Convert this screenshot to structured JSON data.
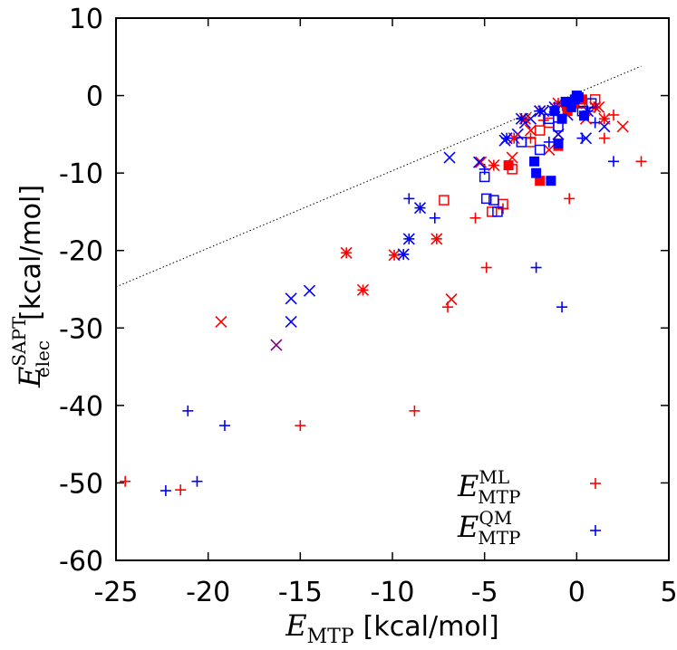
{
  "chart_data": {
    "type": "scatter",
    "title": "",
    "xlim": [
      -25,
      5
    ],
    "ylim": [
      -60,
      10
    ],
    "x_ticks": [
      -25,
      -20,
      -15,
      -10,
      -5,
      0,
      5
    ],
    "y_ticks": [
      -60,
      -50,
      -40,
      -30,
      -20,
      -10,
      0,
      10
    ],
    "x_tick_labels": [
      "-25",
      "-20",
      "-15",
      "-10",
      "-5",
      "0",
      "5"
    ],
    "y_tick_labels": [
      "-60",
      "-50",
      "-40",
      "-30",
      "-20",
      "-10",
      "0",
      "10"
    ],
    "xlabel": {
      "symbol": "E",
      "sub": "MTP",
      "unit": "[kcal/mol]"
    },
    "ylabel": {
      "symbol": "E",
      "sup": "SAPT",
      "sub": "elec",
      "unit": "[kcal/mol]"
    },
    "grid": false,
    "legend_position": "bottom-right",
    "reference_line": {
      "style": "dotted",
      "color": "#000000",
      "x": [
        -25,
        3.5
      ],
      "y": [
        -24.7,
        3.8
      ]
    },
    "colors": {
      "ML": "#ff0000",
      "QM": "#0000ff",
      "overlap": "#800080"
    },
    "legend": [
      {
        "symbol": "E",
        "sup": "ML",
        "sub": "MTP",
        "color": "#ff0000",
        "marker": "plus"
      },
      {
        "symbol": "E",
        "sup": "QM",
        "sub": "MTP",
        "color": "#0000ff",
        "marker": "plus"
      }
    ],
    "series": [
      {
        "name": "ML",
        "color": "#ff0000",
        "marker": "plus",
        "x": [
          -24.5,
          -21.5,
          -15.0,
          -8.8,
          -7.0,
          -4.9,
          -5.5,
          -4.0,
          -0.4,
          -2.5,
          3.5,
          1.5,
          2.0,
          -1.8
        ],
        "y": [
          -49.8,
          -50.9,
          -42.6,
          -40.7,
          -27.3,
          -22.2,
          -15.8,
          -14.6,
          -13.3,
          -5.5,
          -8.5,
          -5.5,
          -2.5,
          -3.2
        ]
      },
      {
        "name": "QM",
        "color": "#0000ff",
        "marker": "plus",
        "x": [
          -22.3,
          -20.6,
          -21.1,
          -19.1,
          -9.1,
          -7.7,
          -5.0,
          -2.2,
          -0.8,
          2.0,
          1.0,
          -3.0,
          -1.5,
          -0.5,
          0.3
        ],
        "y": [
          -51.0,
          -49.8,
          -40.7,
          -42.6,
          -13.3,
          -15.8,
          -9.5,
          -22.2,
          -27.3,
          -8.5,
          -3.5,
          -3.0,
          -6.0,
          -1.5,
          -5.5
        ]
      },
      {
        "name": "ML",
        "color": "#ff0000",
        "marker": "cross",
        "x": [
          -19.3,
          -6.8,
          -5.2,
          -2.5,
          -1.0,
          0.5,
          1.2,
          2.5,
          -3.5,
          -1.5,
          0.0
        ],
        "y": [
          -29.2,
          -26.3,
          -8.6,
          -4.5,
          -5.0,
          -3.0,
          -1.5,
          -4.0,
          -8.0,
          -7.0,
          -1.0
        ]
      },
      {
        "name": "QM",
        "color": "#0000ff",
        "marker": "cross",
        "x": [
          -15.5,
          -15.5,
          -14.5,
          -6.9,
          -5.3,
          -3.9,
          -3.2,
          -2.5,
          -1.8,
          -1.0,
          0.5,
          1.5,
          -2.8,
          -0.5
        ],
        "y": [
          -26.2,
          -29.2,
          -25.2,
          -8.0,
          -8.6,
          -5.8,
          -5.0,
          -3.0,
          -2.0,
          -5.0,
          -5.5,
          -4.0,
          -3.5,
          -2.5
        ]
      },
      {
        "name": "",
        "color": "#800080",
        "marker": "cross",
        "x": [
          -16.3
        ],
        "y": [
          -32.2
        ]
      },
      {
        "name": "ML",
        "color": "#ff0000",
        "marker": "star",
        "x": [
          -12.5,
          -11.6,
          -9.9,
          -7.6,
          -4.5,
          -3.4,
          -2.8,
          -2.0,
          -1.0,
          1.0,
          1.5
        ],
        "y": [
          -20.3,
          -25.1,
          -20.6,
          -18.5,
          -9.0,
          -5.5,
          -3.0,
          -2.0,
          -1.0,
          -1.5,
          -3.0
        ]
      },
      {
        "name": "QM",
        "color": "#0000ff",
        "marker": "star",
        "x": [
          -9.4,
          -9.1,
          -8.5,
          -3.8,
          -3.0,
          -2.0,
          -1.2,
          -0.5,
          0.6
        ],
        "y": [
          -20.5,
          -18.5,
          -14.5,
          -5.5,
          -3.0,
          -2.0,
          -1.5,
          -1.0,
          -2.0
        ]
      },
      {
        "name": "ML",
        "color": "#ff0000",
        "marker": "box",
        "x": [
          -7.2,
          -4.6,
          -4.0,
          -2.5,
          -1.5,
          -0.8,
          0.2,
          1.0,
          -3.5,
          -2.0
        ],
        "y": [
          -13.5,
          -15.0,
          -14.0,
          -6.0,
          -3.5,
          -2.0,
          -1.0,
          -0.5,
          -9.5,
          -4.5
        ]
      },
      {
        "name": "QM",
        "color": "#0000ff",
        "marker": "box",
        "x": [
          -5.0,
          -4.9,
          -4.3,
          -4.5,
          -2.0,
          -1.0,
          0.3,
          0.8,
          -3.0,
          -1.5
        ],
        "y": [
          -10.5,
          -13.3,
          -15.0,
          -13.5,
          -7.0,
          -4.0,
          -2.0,
          -1.0,
          -6.0,
          -3.0
        ]
      },
      {
        "name": "ML",
        "color": "#ff0000",
        "marker": "filled-box",
        "x": [
          -3.7,
          -2.0,
          -1.0,
          -0.2,
          0.3,
          -0.5
        ],
        "y": [
          -9.0,
          -11.0,
          -6.5,
          -1.0,
          -0.5,
          -2.0
        ]
      },
      {
        "name": "QM",
        "color": "#0000ff",
        "marker": "filled-box",
        "x": [
          -2.3,
          -2.2,
          -1.4,
          -1.0,
          0.4,
          -0.3,
          0.1,
          -0.6,
          -0.1,
          0.0,
          -1.2,
          -0.8
        ],
        "y": [
          -8.5,
          -10.0,
          -11.0,
          -6.2,
          -2.6,
          -1.5,
          -0.2,
          -0.8,
          -0.5,
          0.0,
          -2.0,
          -3.0
        ]
      }
    ]
  }
}
